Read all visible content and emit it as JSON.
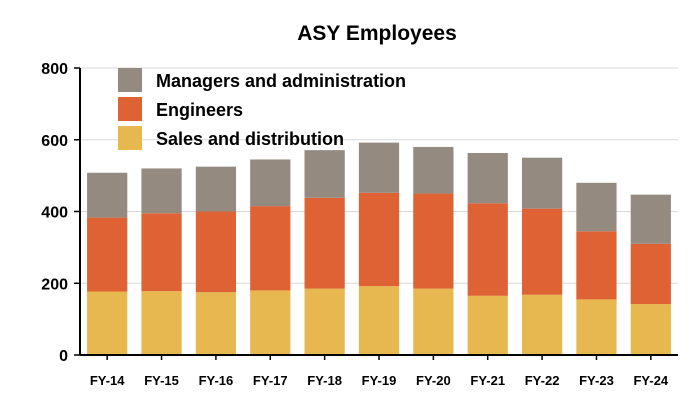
{
  "chart_data": {
    "type": "bar",
    "stacked": true,
    "title": "ASY Employees",
    "xlabel": "",
    "ylabel": "",
    "ylim": [
      0,
      800
    ],
    "yticks": [
      0,
      200,
      400,
      600,
      800
    ],
    "grid": true,
    "legend_position": "top-left",
    "categories": [
      "FY-14",
      "FY-15",
      "FY-16",
      "FY-17",
      "FY-18",
      "FY-19",
      "FY-20",
      "FY-21",
      "FY-22",
      "FY-23",
      "FY-24"
    ],
    "series": [
      {
        "name": "Sales and distribution",
        "color": "#E6B84F",
        "values": [
          177,
          178,
          175,
          180,
          185,
          192,
          185,
          165,
          168,
          155,
          142
        ]
      },
      {
        "name": "Engineers",
        "color": "#DE6233",
        "values": [
          206,
          217,
          225,
          235,
          253,
          260,
          265,
          258,
          240,
          190,
          168
        ]
      },
      {
        "name": "Managers and administration",
        "color": "#958A80",
        "values": [
          125,
          125,
          125,
          130,
          133,
          140,
          130,
          140,
          142,
          135,
          137
        ]
      }
    ],
    "legend_order": [
      "Managers and administration",
      "Engineers",
      "Sales and distribution"
    ]
  }
}
